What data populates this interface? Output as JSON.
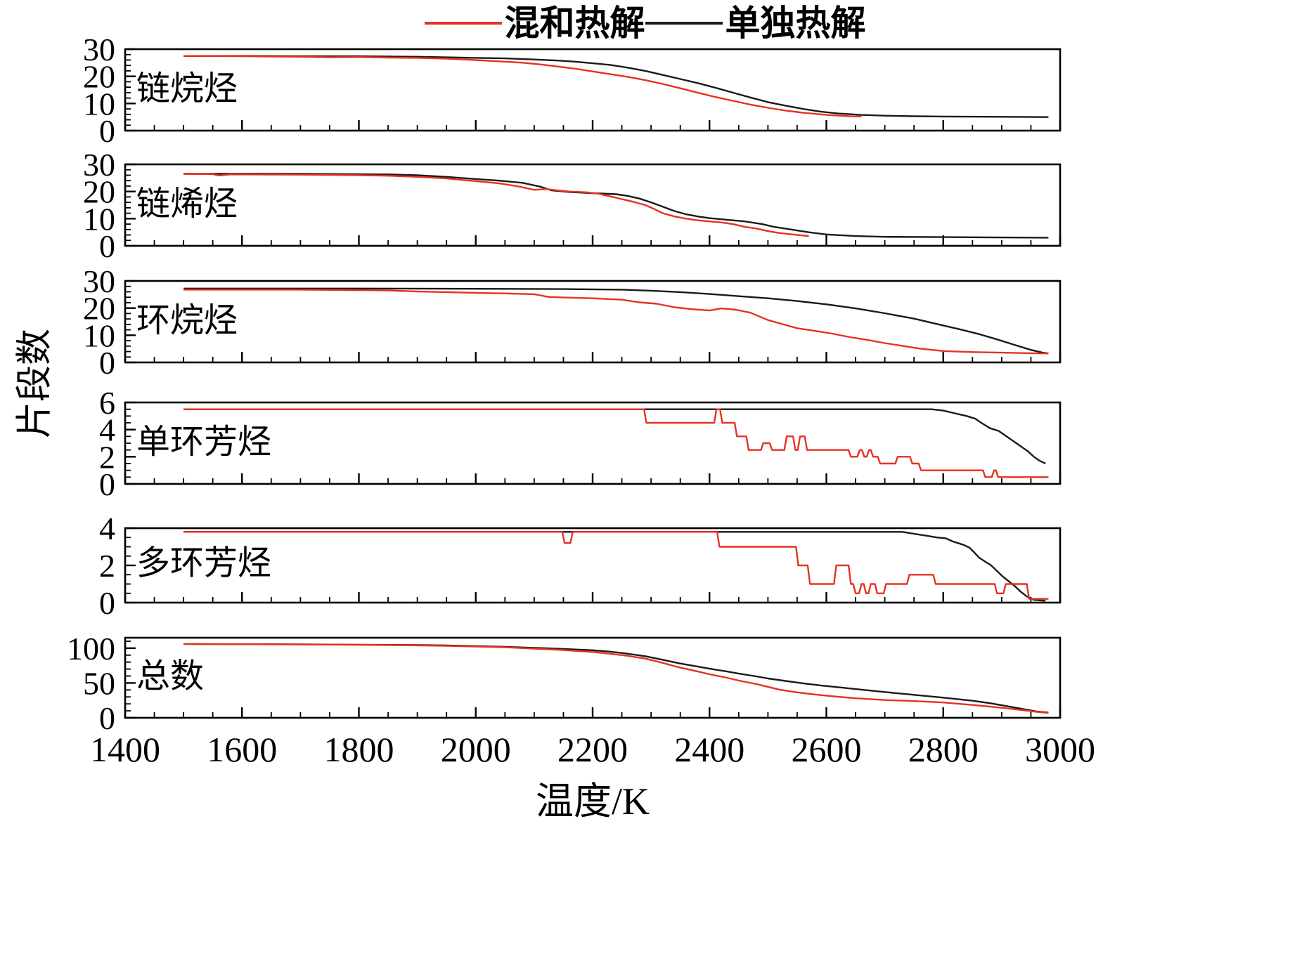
{
  "legend": {
    "items": [
      {
        "label": "混和热解",
        "color": "#e53224"
      },
      {
        "label": "单独热解",
        "color": "#1a1a1a"
      }
    ]
  },
  "axes": {
    "xlabel": "温度/K",
    "ylabel": "片段数"
  },
  "x_axis": {
    "min": 1400,
    "max": 3000,
    "major_ticks": [
      1400,
      1600,
      1800,
      2000,
      2200,
      2400,
      2600,
      2800,
      3000
    ],
    "minor_step": 50
  },
  "chart_data": [
    {
      "type": "line",
      "title": "链烷烃",
      "ylim": [
        0,
        30
      ],
      "yticks": [
        0,
        10,
        20,
        30
      ],
      "yminor": 2,
      "series": [
        {
          "name": "单独热解",
          "color": "#1a1a1a",
          "x": [
            1500,
            1600,
            1700,
            1800,
            1900,
            1950,
            2000,
            2050,
            2100,
            2140,
            2170,
            2200,
            2230,
            2260,
            2290,
            2320,
            2350,
            2380,
            2410,
            2440,
            2470,
            2500,
            2530,
            2560,
            2590,
            2620,
            2660,
            2700,
            2750,
            2800,
            2900,
            2980
          ],
          "y": [
            27.5,
            27.5,
            27.4,
            27.4,
            27.2,
            27,
            26.8,
            26.6,
            26.2,
            25.8,
            25.4,
            24.8,
            24.2,
            23.2,
            22,
            20.5,
            19,
            17.5,
            15.8,
            14,
            12.2,
            10.5,
            9.2,
            8,
            7,
            6.3,
            5.8,
            5.5,
            5.3,
            5.2,
            5.1,
            5
          ]
        },
        {
          "name": "混和热解",
          "color": "#e53224",
          "x": [
            1500,
            1600,
            1700,
            1750,
            1800,
            1850,
            1900,
            1950,
            2000,
            2050,
            2080,
            2110,
            2140,
            2170,
            2200,
            2230,
            2260,
            2290,
            2320,
            2350,
            2380,
            2410,
            2440,
            2470,
            2500,
            2530,
            2560,
            2600,
            2640,
            2660
          ],
          "y": [
            27.5,
            27.4,
            27.2,
            27,
            27.1,
            26.9,
            26.8,
            26.5,
            26,
            25.4,
            25,
            24.4,
            23.6,
            22.8,
            21.8,
            20.8,
            19.8,
            18.6,
            17.2,
            15.6,
            14,
            12.4,
            11,
            9.6,
            8.4,
            7.4,
            6.6,
            5.8,
            5.3,
            5.2
          ]
        }
      ]
    },
    {
      "type": "line",
      "title": "链烯烃",
      "ylim": [
        0,
        30
      ],
      "yticks": [
        0,
        10,
        20,
        30
      ],
      "yminor": 2,
      "series": [
        {
          "name": "单独热解",
          "color": "#1a1a1a",
          "x": [
            1500,
            1700,
            1850,
            1900,
            1950,
            2000,
            2040,
            2080,
            2110,
            2130,
            2160,
            2200,
            2240,
            2260,
            2280,
            2300,
            2320,
            2340,
            2360,
            2380,
            2400,
            2430,
            2460,
            2490,
            2510,
            2540,
            2570,
            2600,
            2650,
            2700,
            2800,
            2980
          ],
          "y": [
            26.5,
            26.5,
            26.3,
            26,
            25.4,
            24.6,
            24,
            23.2,
            21.8,
            20.4,
            19.8,
            19.4,
            19,
            18.4,
            17.4,
            16,
            14.4,
            12.8,
            11.6,
            10.8,
            10.2,
            9.6,
            9,
            8,
            7,
            6,
            5,
            4.2,
            3.6,
            3.3,
            3.2,
            3
          ]
        },
        {
          "name": "混和热解",
          "color": "#e53224",
          "x": [
            1500,
            1550,
            1560,
            1580,
            1700,
            1800,
            1850,
            1900,
            1950,
            1980,
            2010,
            2040,
            2070,
            2100,
            2120,
            2140,
            2160,
            2190,
            2210,
            2230,
            2250,
            2270,
            2290,
            2305,
            2320,
            2340,
            2360,
            2380,
            2400,
            2420,
            2440,
            2460,
            2480,
            2500,
            2520,
            2545,
            2570
          ],
          "y": [
            26.5,
            26.4,
            25.9,
            26.3,
            26.2,
            26,
            25.8,
            25.4,
            24.8,
            24.2,
            23.6,
            23,
            22,
            20.6,
            20.9,
            20.4,
            20,
            19.7,
            19.2,
            18.2,
            17.2,
            16.2,
            15,
            13.6,
            12,
            10.8,
            10,
            9.4,
            9,
            8.6,
            8,
            7,
            6.4,
            5.4,
            4.7,
            4.1,
            3.6
          ]
        }
      ]
    },
    {
      "type": "line",
      "title": "环烷烃",
      "ylim": [
        0,
        30
      ],
      "yticks": [
        0,
        10,
        20,
        30
      ],
      "yminor": 2,
      "series": [
        {
          "name": "单独热解",
          "color": "#1a1a1a",
          "x": [
            1500,
            1800,
            2000,
            2150,
            2250,
            2300,
            2350,
            2400,
            2450,
            2500,
            2550,
            2600,
            2650,
            2700,
            2750,
            2800,
            2830,
            2860,
            2890,
            2920,
            2950,
            2970,
            2980
          ],
          "y": [
            27.2,
            27.2,
            27.1,
            27,
            26.8,
            26.4,
            25.9,
            25.2,
            24.4,
            23.6,
            22.6,
            21.4,
            19.9,
            18.1,
            16.1,
            13.6,
            12.1,
            10.5,
            8.6,
            6.6,
            4.6,
            3.6,
            3.3
          ]
        },
        {
          "name": "混和热解",
          "color": "#e53224",
          "x": [
            1500,
            1700,
            1850,
            1900,
            1950,
            2000,
            2050,
            2100,
            2125,
            2150,
            2200,
            2250,
            2280,
            2310,
            2340,
            2370,
            2400,
            2420,
            2445,
            2470,
            2500,
            2525,
            2550,
            2580,
            2610,
            2640,
            2670,
            2700,
            2730,
            2760,
            2800,
            2850,
            2900,
            2950,
            2980
          ],
          "y": [
            26.8,
            26.8,
            26.5,
            26.1,
            25.9,
            25.6,
            25.4,
            25.1,
            24.1,
            23.9,
            23.6,
            23.1,
            22.1,
            21.6,
            20.3,
            19.6,
            19.1,
            19.9,
            19.4,
            18.3,
            15.6,
            14.1,
            12.6,
            11.6,
            10.6,
            9.3,
            8.3,
            7.1,
            6.1,
            5.1,
            4.2,
            3.8,
            3.6,
            3.4,
            3.3
          ]
        }
      ]
    },
    {
      "type": "line",
      "title": "单环芳烃",
      "ylim": [
        0,
        6
      ],
      "yticks": [
        0,
        2,
        4,
        6
      ],
      "yminor": 0.5,
      "series": [
        {
          "name": "单独热解",
          "color": "#1a1a1a",
          "x": [
            1500,
            2000,
            2500,
            2780,
            2800,
            2820,
            2840,
            2855,
            2865,
            2880,
            2895,
            2905,
            2915,
            2925,
            2935,
            2945,
            2955,
            2965,
            2975
          ],
          "y": [
            5.5,
            5.5,
            5.5,
            5.5,
            5.4,
            5.2,
            5.0,
            4.8,
            4.5,
            4.1,
            3.9,
            3.6,
            3.3,
            3.0,
            2.7,
            2.4,
            2.0,
            1.7,
            1.5
          ]
        },
        {
          "name": "混和热解",
          "color": "#e53224",
          "x": [
            1500,
            2288,
            2292,
            2408,
            2412,
            2418,
            2422,
            2443,
            2447,
            2463,
            2467,
            2488,
            2492,
            2503,
            2507,
            2528,
            2532,
            2543,
            2547,
            2551,
            2555,
            2563,
            2567,
            2638,
            2642,
            2653,
            2657,
            2661,
            2665,
            2669,
            2673,
            2676,
            2680,
            2688,
            2692,
            2718,
            2722,
            2743,
            2747,
            2758,
            2762,
            2868,
            2872,
            2883,
            2887,
            2890,
            2894,
            2980
          ],
          "y": [
            5.5,
            5.5,
            4.5,
            4.5,
            5.5,
            5.5,
            4.5,
            4.5,
            3.5,
            3.5,
            2.5,
            2.5,
            3.0,
            3.0,
            2.5,
            2.5,
            3.5,
            3.5,
            2.5,
            2.5,
            3.5,
            3.5,
            2.5,
            2.5,
            2.0,
            2.0,
            2.5,
            2.5,
            2.0,
            2.0,
            2.5,
            2.5,
            2.0,
            2.0,
            1.5,
            1.5,
            2.0,
            2.0,
            1.5,
            1.5,
            1.0,
            1.0,
            0.5,
            0.5,
            1.0,
            1.0,
            0.5,
            0.5
          ]
        }
      ]
    },
    {
      "type": "line",
      "title": "多环芳烃",
      "ylim": [
        0,
        4
      ],
      "yticks": [
        0,
        2,
        4
      ],
      "yminor": 0.5,
      "series": [
        {
          "name": "单独热解",
          "color": "#1a1a1a",
          "x": [
            1500,
            2000,
            2500,
            2730,
            2750,
            2770,
            2790,
            2805,
            2815,
            2825,
            2835,
            2845,
            2853,
            2862,
            2872,
            2882,
            2892,
            2902,
            2912,
            2922,
            2932,
            2942,
            2955,
            2975
          ],
          "y": [
            3.8,
            3.8,
            3.8,
            3.8,
            3.7,
            3.6,
            3.5,
            3.45,
            3.3,
            3.2,
            3.1,
            2.95,
            2.7,
            2.4,
            2.2,
            2.0,
            1.7,
            1.4,
            1.15,
            0.9,
            0.6,
            0.35,
            0.15,
            0.1
          ]
        },
        {
          "name": "混和热解",
          "color": "#e53224",
          "x": [
            1500,
            2148,
            2152,
            2162,
            2166,
            2413,
            2417,
            2548,
            2552,
            2568,
            2572,
            2613,
            2617,
            2638,
            2642,
            2646,
            2650,
            2656,
            2660,
            2664,
            2668,
            2672,
            2676,
            2683,
            2687,
            2698,
            2702,
            2738,
            2742,
            2783,
            2787,
            2888,
            2892,
            2903,
            2907,
            2943,
            2947,
            2980
          ],
          "y": [
            3.8,
            3.8,
            3.2,
            3.2,
            3.8,
            3.8,
            3.0,
            3.0,
            2.0,
            2.0,
            1.0,
            1.0,
            2.0,
            2.0,
            1.0,
            1.0,
            0.5,
            0.5,
            1.0,
            1.0,
            0.5,
            0.5,
            1.0,
            1.0,
            0.5,
            0.5,
            1.0,
            1.0,
            1.5,
            1.5,
            1.0,
            1.0,
            0.5,
            0.5,
            1.0,
            1.0,
            0.2,
            0.2
          ]
        }
      ]
    },
    {
      "type": "line",
      "title": "总数",
      "ylim": [
        0,
        115
      ],
      "yticks": [
        0,
        50,
        100
      ],
      "yminor": 10,
      "series": [
        {
          "name": "单独热解",
          "color": "#1a1a1a",
          "x": [
            1500,
            1700,
            1800,
            1900,
            1950,
            2000,
            2050,
            2100,
            2150,
            2200,
            2230,
            2260,
            2290,
            2310,
            2330,
            2350,
            2380,
            2400,
            2430,
            2450,
            2480,
            2500,
            2530,
            2560,
            2590,
            2620,
            2660,
            2700,
            2750,
            2800,
            2850,
            2880,
            2910,
            2940,
            2960,
            2980
          ],
          "y": [
            106,
            105.5,
            105,
            104.5,
            104,
            103,
            102,
            100.5,
            99,
            97,
            95,
            92,
            88.5,
            85,
            81.5,
            78,
            73.5,
            70.5,
            66.5,
            63.5,
            59.5,
            56.5,
            53,
            49.5,
            46.5,
            44,
            40.5,
            37,
            33,
            29,
            24.5,
            21,
            16.5,
            12,
            9,
            7.5
          ]
        },
        {
          "name": "混和热解",
          "color": "#e53224",
          "x": [
            1500,
            1700,
            1800,
            1900,
            1950,
            2000,
            2050,
            2100,
            2150,
            2200,
            2230,
            2260,
            2290,
            2310,
            2330,
            2350,
            2380,
            2400,
            2430,
            2450,
            2480,
            2500,
            2520,
            2550,
            2580,
            2610,
            2650,
            2700,
            2750,
            2800,
            2850,
            2880,
            2910,
            2940,
            2960,
            2980
          ],
          "y": [
            106,
            105.3,
            104.8,
            104,
            103.3,
            102.3,
            101.3,
            99.3,
            97.3,
            94.5,
            92,
            89,
            85,
            81,
            76.5,
            72,
            66.5,
            62.5,
            57.5,
            53.5,
            48.5,
            44.5,
            40.5,
            36.5,
            33.5,
            31,
            28,
            25.5,
            24,
            22,
            18.5,
            16,
            13.5,
            10.5,
            8.5,
            7
          ]
        }
      ]
    }
  ]
}
